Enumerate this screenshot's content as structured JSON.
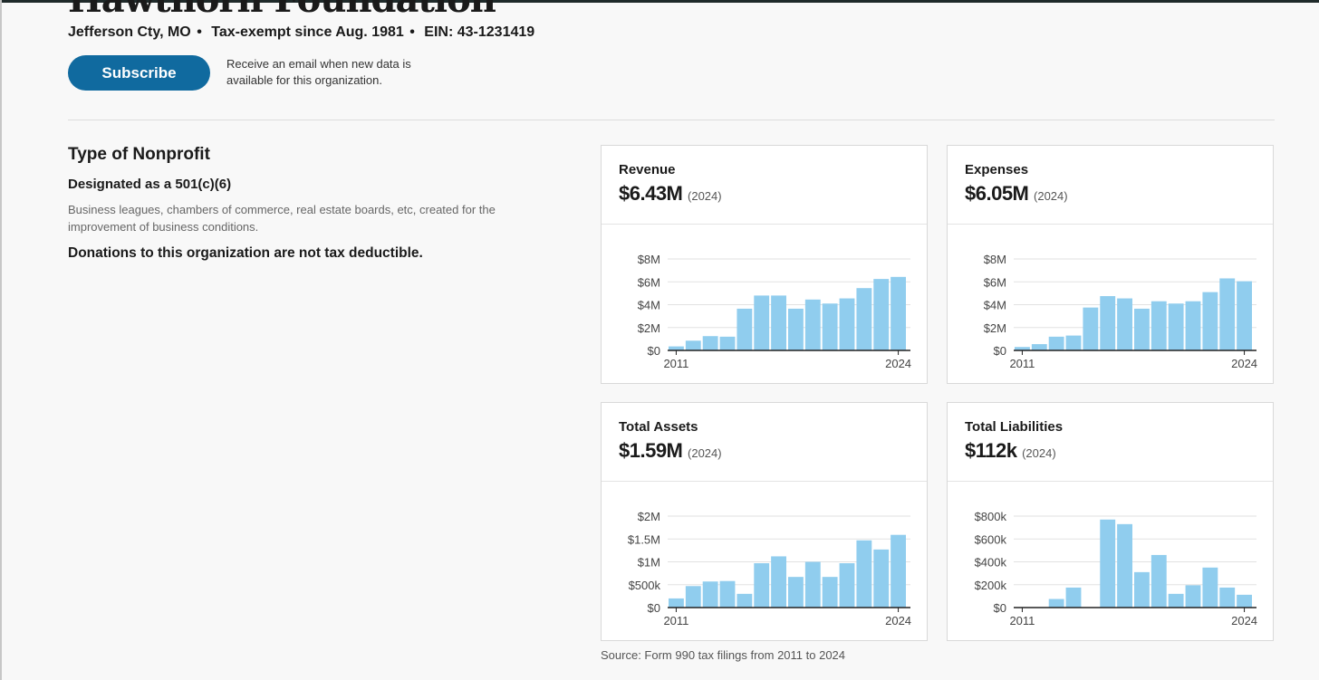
{
  "organization": {
    "name": "Hawthorn Foundation",
    "location": "Jefferson Cty, MO",
    "tax_exempt": "Tax-exempt since Aug. 1981",
    "ein": "EIN: 43-1231419",
    "separator": "•"
  },
  "subscribe": {
    "button_label": "Subscribe",
    "note": "Receive an email when new data is available for this organization."
  },
  "nonprofit_type": {
    "heading": "Type of Nonprofit",
    "designation": "Designated as a 501(c)(6)",
    "description": "Business leagues, chambers of commerce, real estate boards, etc, created for the improvement of business conditions.",
    "deductibility": "Donations to this organization are not tax deductible."
  },
  "source": "Source: Form 990 tax filings from 2011 to 2024",
  "bar_color": "#90cdee",
  "chart_data": [
    {
      "type": "bar",
      "title": "Revenue",
      "headline_value": "$6.43M",
      "headline_year": "(2024)",
      "x": [
        2011,
        2012,
        2013,
        2014,
        2015,
        2016,
        2017,
        2018,
        2019,
        2020,
        2021,
        2022,
        2023,
        2024
      ],
      "values": [
        0.35,
        0.85,
        1.25,
        1.2,
        3.65,
        4.8,
        4.8,
        3.65,
        4.45,
        4.1,
        4.55,
        5.45,
        6.25,
        6.43
      ],
      "yticks": [
        0,
        2,
        4,
        6,
        8
      ],
      "ytick_labels": [
        "$0",
        "$2M",
        "$4M",
        "$6M",
        "$8M"
      ],
      "ylim": [
        0,
        8
      ],
      "xtick_labels": [
        "2011",
        "2024"
      ],
      "grid": true
    },
    {
      "type": "bar",
      "title": "Expenses",
      "headline_value": "$6.05M",
      "headline_year": "(2024)",
      "x": [
        2011,
        2012,
        2013,
        2014,
        2015,
        2016,
        2017,
        2018,
        2019,
        2020,
        2021,
        2022,
        2023,
        2024
      ],
      "values": [
        0.3,
        0.55,
        1.2,
        1.3,
        3.75,
        4.75,
        4.55,
        3.65,
        4.3,
        4.1,
        4.3,
        5.1,
        6.3,
        6.05
      ],
      "yticks": [
        0,
        2,
        4,
        6,
        8
      ],
      "ytick_labels": [
        "$0",
        "$2M",
        "$4M",
        "$6M",
        "$8M"
      ],
      "ylim": [
        0,
        8
      ],
      "xtick_labels": [
        "2011",
        "2024"
      ],
      "grid": true
    },
    {
      "type": "bar",
      "title": "Total Assets",
      "headline_value": "$1.59M",
      "headline_year": "(2024)",
      "x": [
        2011,
        2012,
        2013,
        2014,
        2015,
        2016,
        2017,
        2018,
        2019,
        2020,
        2021,
        2022,
        2023,
        2024
      ],
      "values": [
        0.2,
        0.47,
        0.57,
        0.58,
        0.3,
        0.97,
        1.12,
        0.67,
        1.0,
        0.67,
        0.97,
        1.47,
        1.27,
        1.59
      ],
      "yticks": [
        0,
        0.5,
        1,
        1.5,
        2
      ],
      "ytick_labels": [
        "$0",
        "$500k",
        "$1M",
        "$1.5M",
        "$2M"
      ],
      "ylim": [
        0,
        2
      ],
      "xtick_labels": [
        "2011",
        "2024"
      ],
      "grid": true
    },
    {
      "type": "bar",
      "title": "Total Liabilities",
      "headline_value": "$112k",
      "headline_year": "(2024)",
      "x": [
        2011,
        2012,
        2013,
        2014,
        2015,
        2016,
        2017,
        2018,
        2019,
        2020,
        2021,
        2022,
        2023,
        2024
      ],
      "values": [
        0,
        0,
        75,
        175,
        0,
        770,
        730,
        310,
        460,
        120,
        195,
        350,
        175,
        112
      ],
      "yticks": [
        0,
        200,
        400,
        600,
        800
      ],
      "ytick_labels": [
        "$0",
        "$200k",
        "$400k",
        "$600k",
        "$800k"
      ],
      "ylim": [
        0,
        800
      ],
      "xtick_labels": [
        "2011",
        "2024"
      ],
      "grid": true
    }
  ]
}
